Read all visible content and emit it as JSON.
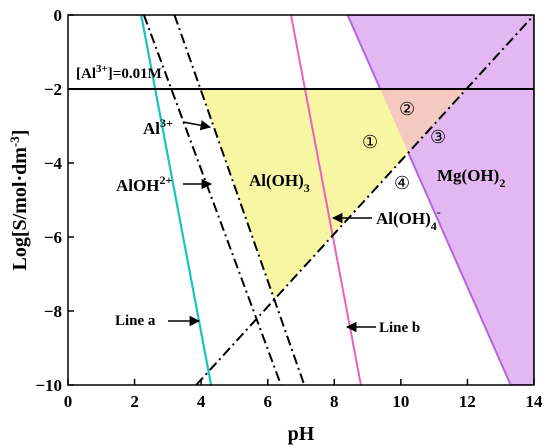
{
  "chart_data": {
    "type": "line",
    "xlabel": "pH",
    "ylabel": "Log[S/mol·dm",
    "ylabel_sup": "-3",
    "ylabel_end": "]",
    "xlim": [
      0,
      14
    ],
    "ylim": [
      -10,
      0
    ],
    "xticks": [
      "0",
      "2",
      "4",
      "6",
      "8",
      "10",
      "12",
      "14"
    ],
    "yticks": [
      "0",
      "−2",
      "−4",
      "−6",
      "−8",
      "−10"
    ],
    "grid": false,
    "colors": {
      "line_a": "#19c3c3",
      "line_b": "#ee5fbf",
      "aloh3_region": "#f7f7a3",
      "mgoh2_region": "#e3b8f2",
      "mgoh2_region_edge": "#b565e0",
      "overlap_region": "#f3c9c0",
      "al_conc_line": "#000000",
      "dashdot": "#000000"
    },
    "series": [
      {
        "name": "Line a",
        "points": [
          [
            2.2,
            0
          ],
          [
            4.3,
            -10
          ]
        ]
      },
      {
        "name": "Line b",
        "points": [
          [
            6.7,
            0
          ],
          [
            8.8,
            -10
          ]
        ]
      },
      {
        "name": "Al3+",
        "points": [
          [
            2.28,
            0
          ],
          [
            6.4,
            -10
          ]
        ]
      },
      {
        "name": "AlOH2+",
        "points": [
          [
            3.2,
            0
          ],
          [
            7.1,
            -10
          ]
        ]
      },
      {
        "name": "Al(OH)4-",
        "points": [
          [
            3.85,
            -10
          ],
          [
            14,
            0
          ]
        ]
      },
      {
        "name": "Mg(OH)2",
        "points": [
          [
            8.4,
            0
          ],
          [
            13.3,
            -10
          ]
        ]
      },
      {
        "name": "[Al3+]=0.01M",
        "points": [
          [
            0,
            -2
          ],
          [
            14,
            -2
          ]
        ]
      }
    ],
    "annotations": {
      "al_limit": "[Al",
      "al_limit_sup": "3+",
      "al_limit_end": "]=0.01M",
      "al3": "Al",
      "al3_sup": "3+",
      "aloh2": "AlOH",
      "aloh2_sup": "2+",
      "aloh3": "Al(OH)",
      "aloh3_sub": "3",
      "aloh4": "Al(OH)",
      "aloh4_sub": "4",
      "aloh4_sup": "-",
      "mgoh2": "Mg(OH)",
      "mgoh2_sub": "2",
      "line_a": "Line a",
      "line_b": "Line b",
      "region_1": "①",
      "region_2": "②",
      "region_3": "③",
      "region_4": "④"
    }
  }
}
